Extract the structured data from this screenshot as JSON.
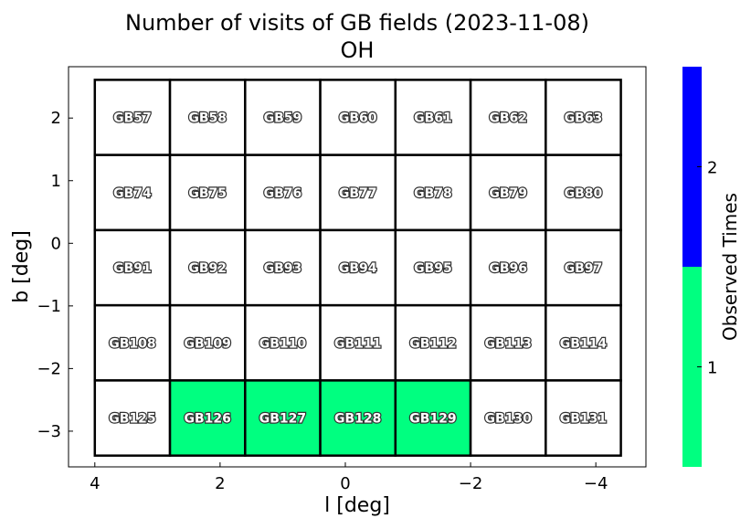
{
  "chart_data": {
    "type": "heatmap",
    "title": "Number of visits of GB fields (2023-11-08)",
    "subtitle": "OH",
    "xlabel": "l [deg]",
    "ylabel": "b [deg]",
    "xlim": [
      4.42,
      -4.8
    ],
    "ylim": [
      -3.57,
      2.82
    ],
    "xticks": [
      4,
      2,
      0,
      -2,
      -4
    ],
    "xtick_labels": [
      "4",
      "2",
      "0",
      "−2",
      "−4"
    ],
    "yticks": [
      2,
      1,
      0,
      -1,
      -2,
      -3
    ],
    "ytick_labels": [
      "2",
      "1",
      "0",
      "−1",
      "−2",
      "−3"
    ],
    "grid": false,
    "field_size_deg": 1.2,
    "columns_l_left_edges": [
      4.0,
      2.8,
      1.6,
      0.4,
      -0.8,
      -2.0,
      -3.2
    ],
    "rows_b_top_edges": [
      2.61,
      1.41,
      0.21,
      -0.99,
      -2.19
    ],
    "fields": [
      [
        "GB57",
        "GB58",
        "GB59",
        "GB60",
        "GB61",
        "GB62",
        "GB63"
      ],
      [
        "GB74",
        "GB75",
        "GB76",
        "GB77",
        "GB78",
        "GB79",
        "GB80"
      ],
      [
        "GB91",
        "GB92",
        "GB93",
        "GB94",
        "GB95",
        "GB96",
        "GB97"
      ],
      [
        "GB108",
        "GB109",
        "GB110",
        "GB111",
        "GB112",
        "GB113",
        "GB114"
      ],
      [
        "GB125",
        "GB126",
        "GB127",
        "GB128",
        "GB129",
        "GB130",
        "GB131"
      ]
    ],
    "visits": [
      [
        0,
        0,
        0,
        0,
        0,
        0,
        0
      ],
      [
        0,
        0,
        0,
        0,
        0,
        0,
        0
      ],
      [
        0,
        0,
        0,
        0,
        0,
        0,
        0
      ],
      [
        0,
        0,
        0,
        0,
        0,
        0,
        0
      ],
      [
        0,
        1,
        1,
        1,
        1,
        0,
        0
      ]
    ],
    "colorbar": {
      "label": "Observed Times",
      "range": [
        0.5,
        2.5
      ],
      "ticks": [
        1,
        2
      ],
      "tick_labels": [
        "1",
        "2"
      ],
      "colors": {
        "1": "#00ff80",
        "2": "#0000ff"
      },
      "zero_color": "#ffffff"
    }
  }
}
